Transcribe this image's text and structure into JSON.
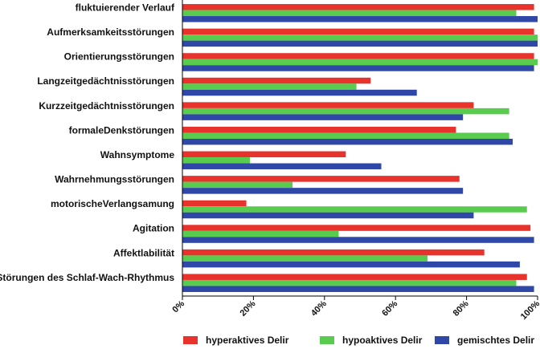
{
  "chart_data": {
    "type": "bar",
    "orientation": "horizontal",
    "categories": [
      "fluktuierender Verlauf",
      "Aufmerksamkeitsstörungen",
      "Orientierungsstörungen",
      "Langzeitgedächtnisstörungen",
      "Kurzzeitgedächtnisstörungen",
      "formaleDenkstörungen",
      "Wahnsymptome",
      "Wahrnehmungsstörungen",
      "motorischeVerlangsamung",
      "Agitation",
      "Affektlabilität",
      "Störungen des Schlaf-Wach-Rhythmus"
    ],
    "series": [
      {
        "name": "hyperaktives Delir",
        "color": "#e8322c",
        "values": [
          99,
          99,
          99,
          53,
          82,
          77,
          46,
          78,
          18,
          98,
          85,
          97
        ]
      },
      {
        "name": "hypoaktives Delir",
        "color": "#59cc4f",
        "values": [
          94,
          100,
          100,
          49,
          92,
          92,
          19,
          31,
          97,
          44,
          69,
          94
        ]
      },
      {
        "name": "gemischtes Delir",
        "color": "#2f48a8",
        "values": [
          100,
          100,
          99,
          66,
          79,
          93,
          56,
          79,
          82,
          99,
          95,
          99
        ]
      }
    ],
    "xlim": [
      0,
      100
    ],
    "x_ticks": [
      "0%",
      "20%",
      "40%",
      "60%",
      "80%",
      "100%"
    ],
    "legend_position": "bottom",
    "grid": false
  }
}
